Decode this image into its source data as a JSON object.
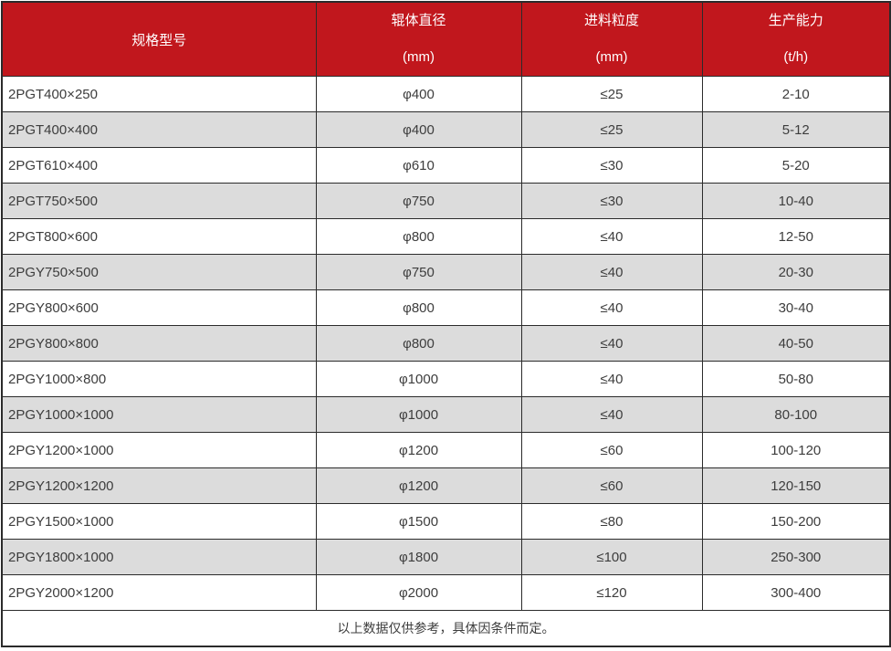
{
  "table": {
    "columns": [
      {
        "title": "规格型号",
        "unit": ""
      },
      {
        "title": "辊体直径",
        "unit": "(mm)"
      },
      {
        "title": "进料粒度",
        "unit": "(mm)"
      },
      {
        "title": "生产能力",
        "unit": "(t/h)"
      }
    ],
    "rows": [
      [
        "2PGT400×250",
        "φ400",
        "≤25",
        "2-10"
      ],
      [
        "2PGT400×400",
        "φ400",
        "≤25",
        "5-12"
      ],
      [
        "2PGT610×400",
        "φ610",
        "≤30",
        "5-20"
      ],
      [
        "2PGT750×500",
        "φ750",
        "≤30",
        "10-40"
      ],
      [
        "2PGT800×600",
        "φ800",
        "≤40",
        "12-50"
      ],
      [
        "2PGY750×500",
        "φ750",
        "≤40",
        "20-30"
      ],
      [
        "2PGY800×600",
        "φ800",
        "≤40",
        "30-40"
      ],
      [
        "2PGY800×800",
        "φ800",
        "≤40",
        "40-50"
      ],
      [
        "2PGY1000×800",
        "φ1000",
        "≤40",
        "50-80"
      ],
      [
        "2PGY1000×1000",
        "φ1000",
        "≤40",
        "80-100"
      ],
      [
        "2PGY1200×1000",
        "φ1200",
        "≤60",
        "100-120"
      ],
      [
        "2PGY1200×1200",
        "φ1200",
        "≤60",
        "120-150"
      ],
      [
        "2PGY1500×1000",
        "φ1500",
        "≤80",
        "150-200"
      ],
      [
        "2PGY1800×1000",
        "φ1800",
        "≤100",
        "250-300"
      ],
      [
        "2PGY2000×1200",
        "φ2000",
        "≤120",
        "300-400"
      ]
    ],
    "footnote": "以上数据仅供参考，具体因条件而定。"
  },
  "colors": {
    "header_bg": "#c1171d",
    "header_text": "#ffffff",
    "row_bg": "#ffffff",
    "row_alt_bg": "#dcdcdc",
    "border": "#2b2b2b",
    "body_text": "#3d3d3d"
  },
  "chart_data": {
    "type": "table",
    "title": "",
    "columns": [
      "规格型号",
      "辊体直径 (mm)",
      "进料粒度 (mm)",
      "生产能力 (t/h)"
    ],
    "rows": [
      [
        "2PGT400×250",
        "φ400",
        "≤25",
        "2-10"
      ],
      [
        "2PGT400×400",
        "φ400",
        "≤25",
        "5-12"
      ],
      [
        "2PGT610×400",
        "φ610",
        "≤30",
        "5-20"
      ],
      [
        "2PGT750×500",
        "φ750",
        "≤30",
        "10-40"
      ],
      [
        "2PGT800×600",
        "φ800",
        "≤40",
        "12-50"
      ],
      [
        "2PGY750×500",
        "φ750",
        "≤40",
        "20-30"
      ],
      [
        "2PGY800×600",
        "φ800",
        "≤40",
        "30-40"
      ],
      [
        "2PGY800×800",
        "φ800",
        "≤40",
        "40-50"
      ],
      [
        "2PGY1000×800",
        "φ1000",
        "≤40",
        "50-80"
      ],
      [
        "2PGY1000×1000",
        "φ1000",
        "≤40",
        "80-100"
      ],
      [
        "2PGY1200×1000",
        "φ1200",
        "≤60",
        "100-120"
      ],
      [
        "2PGY1200×1200",
        "φ1200",
        "≤60",
        "120-150"
      ],
      [
        "2PGY1500×1000",
        "φ1500",
        "≤80",
        "150-200"
      ],
      [
        "2PGY1800×1000",
        "φ1800",
        "≤100",
        "250-300"
      ],
      [
        "2PGY2000×1200",
        "φ2000",
        "≤120",
        "300-400"
      ]
    ],
    "footnote": "以上数据仅供参考，具体因条件而定。"
  }
}
